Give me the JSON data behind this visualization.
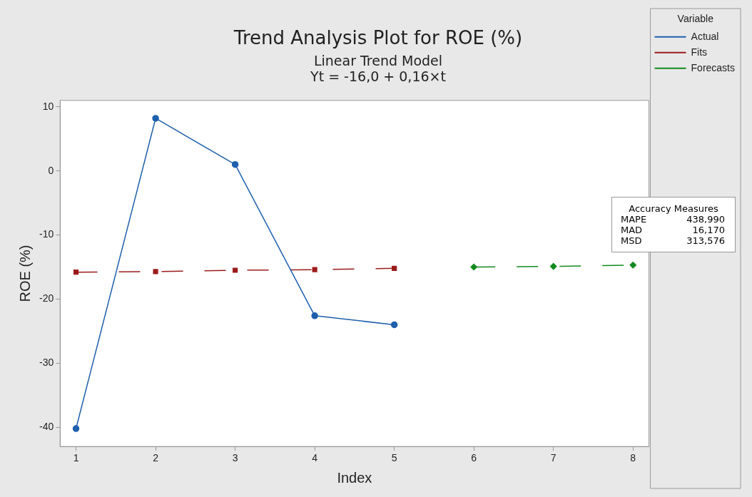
{
  "chart_data": {
    "type": "line",
    "title": "Trend Analysis Plot for ROE (%)",
    "subtitle": "Linear Trend Model\nYt = -16,0 + 0,16×t",
    "xlabel": "Index",
    "ylabel": "ROE (%)",
    "legend_title": "Variable",
    "series": [
      {
        "name": "Actual",
        "color": "#1f5fad",
        "x": [
          1,
          2,
          3,
          4,
          5
        ],
        "values": [
          -40.2,
          8.2,
          1.0,
          -22.6,
          -24.0
        ],
        "marker": "circle",
        "line_style": "solid"
      },
      {
        "name": "Fits",
        "color": "#9b1b1b",
        "x": [
          1,
          2,
          3,
          4,
          5
        ],
        "values": [
          -15.8,
          -15.7,
          -15.5,
          -15.4,
          -15.2
        ],
        "marker": "square",
        "line_style": "dashed"
      },
      {
        "name": "Forecasts",
        "color": "#138a1f",
        "x": [
          6,
          7,
          8
        ],
        "values": [
          -15.0,
          -14.9,
          -14.7
        ],
        "marker": "diamond",
        "line_style": "dashed"
      }
    ],
    "xlim": [
      0.8,
      8.2
    ],
    "xticks": [
      1,
      2,
      3,
      4,
      5,
      6,
      7,
      8
    ],
    "ylim": [
      -43,
      11
    ],
    "yticks": [
      -40,
      -30,
      -20,
      -10,
      0,
      10
    ],
    "grid": false,
    "legend": "top right",
    "annotations": [
      "Accuracy Measures",
      "MAPE 438,990",
      "MAD 16,170",
      "MSD 313,576"
    ]
  }
}
